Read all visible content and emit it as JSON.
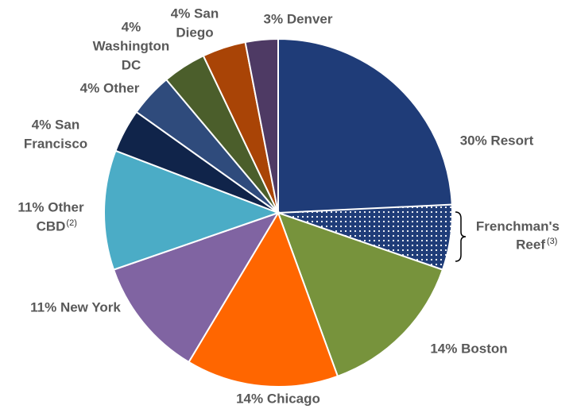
{
  "chart_data": {
    "type": "pie",
    "labels": [
      [
        "30% Resort"
      ],
      [
        "14% Boston"
      ],
      [
        "14% Chicago"
      ],
      [
        "11% New York"
      ],
      [
        "11% Other",
        "CBD"
      ],
      [
        "4% San",
        "Francisco"
      ],
      [
        "4% Other"
      ],
      [
        "4%",
        "Washington",
        "DC"
      ],
      [
        "4% San",
        "Diego"
      ],
      [
        "3% Denver"
      ]
    ],
    "notes": [
      null,
      null,
      null,
      null,
      "(2)",
      null,
      null,
      null,
      null,
      null
    ],
    "values": [
      30,
      14,
      14,
      11,
      11,
      4,
      4,
      4,
      4,
      3
    ],
    "colors": [
      "#1f3c78",
      "#77933c",
      "#ff6600",
      "#8064a2",
      "#4bacc6",
      "#10244a",
      "#2f4b7c",
      "#4b5e2b",
      "#a94406",
      "#4e3a64"
    ],
    "highlight": {
      "slice": 0,
      "value": 6,
      "label": [
        "Frenchman's",
        "Reef"
      ],
      "note": "(3)"
    }
  }
}
